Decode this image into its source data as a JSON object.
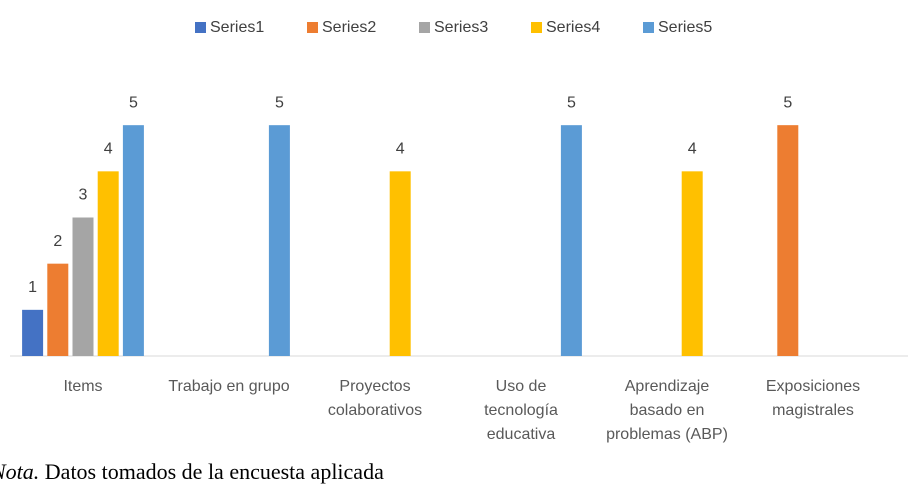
{
  "chart_data": {
    "type": "bar",
    "categories": [
      "Items",
      "Trabajo en grupo",
      "Proyectos colaborativos",
      "Uso de tecnología educativa",
      "Aprendizaje basado en problemas (ABP)",
      "Exposiciones magistrales"
    ],
    "series": [
      {
        "name": "Series1",
        "color": "#4472c4",
        "values": [
          1,
          null,
          null,
          null,
          null,
          null
        ]
      },
      {
        "name": "Series2",
        "color": "#ed7d31",
        "values": [
          2,
          null,
          null,
          null,
          null,
          5
        ]
      },
      {
        "name": "Series3",
        "color": "#a5a5a5",
        "values": [
          3,
          null,
          null,
          null,
          null,
          null
        ]
      },
      {
        "name": "Series4",
        "color": "#ffc000",
        "values": [
          4,
          null,
          4,
          null,
          4,
          null
        ]
      },
      {
        "name": "Series5",
        "color": "#5b9bd5",
        "values": [
          5,
          5,
          null,
          5,
          null,
          null
        ]
      }
    ],
    "ylim": [
      0,
      6
    ],
    "legend": "top",
    "note": {
      "label": "Nota.",
      "text": " Datos tomados de la encuesta aplicada"
    }
  }
}
